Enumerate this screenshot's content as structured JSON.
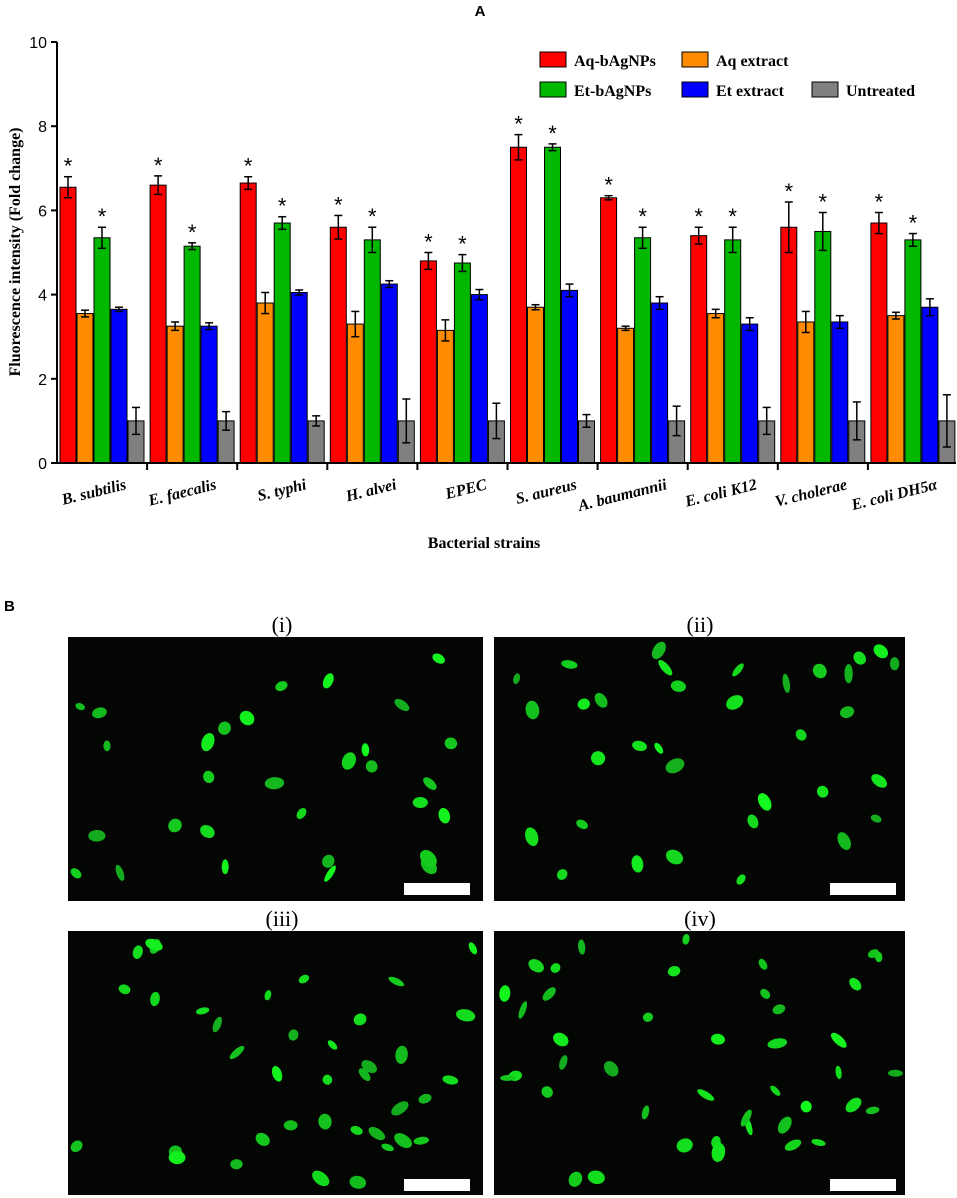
{
  "panel_a_label": "A",
  "panel_b_label": "B",
  "chart_data": {
    "type": "bar",
    "xlabel": "Bacterial strains",
    "ylabel": "Fluorescence intensity (Fold change)",
    "ylim": [
      0,
      10
    ],
    "yticks": [
      "0",
      "2",
      "4",
      "6",
      "8",
      "10"
    ],
    "legend_position": "top-right",
    "categories": [
      "B. subtilis",
      "E. faecalis",
      "S. typhi",
      "H. alvei",
      "EPEC",
      "S. aureus",
      "A. baumannii",
      "E. coli K12",
      "V. cholerae",
      "E. coli DH5α"
    ],
    "series": [
      {
        "name": "Aq-bAgNPs",
        "color": "#ff0000",
        "values": [
          6.55,
          6.6,
          6.65,
          5.6,
          4.8,
          7.5,
          6.3,
          5.4,
          5.6,
          5.7
        ],
        "errors": [
          0.25,
          0.22,
          0.15,
          0.28,
          0.2,
          0.3,
          0.05,
          0.2,
          0.6,
          0.25
        ],
        "significance": [
          "*",
          "*",
          "*",
          "*",
          "*",
          "*",
          "*",
          "*",
          "*",
          "*"
        ]
      },
      {
        "name": "Aq extract",
        "color": "#ff8c00",
        "values": [
          3.55,
          3.25,
          3.8,
          3.3,
          3.15,
          3.7,
          3.2,
          3.55,
          3.35,
          3.5
        ],
        "errors": [
          0.08,
          0.1,
          0.25,
          0.3,
          0.25,
          0.06,
          0.05,
          0.1,
          0.25,
          0.08
        ],
        "significance": [
          "",
          "",
          "",
          "",
          "",
          "",
          "",
          "",
          "",
          ""
        ]
      },
      {
        "name": "Et-bAgNPs",
        "color": "#00b800",
        "values": [
          5.35,
          5.15,
          5.7,
          5.3,
          4.75,
          7.5,
          5.35,
          5.3,
          5.5,
          5.3
        ],
        "errors": [
          0.25,
          0.08,
          0.15,
          0.3,
          0.2,
          0.08,
          0.25,
          0.3,
          0.45,
          0.15
        ],
        "significance": [
          "*",
          "*",
          "*",
          "*",
          "*",
          "*",
          "*",
          "*",
          "*",
          "*"
        ]
      },
      {
        "name": "Et extract",
        "color": "#0000ff",
        "values": [
          3.65,
          3.25,
          4.05,
          4.25,
          4.0,
          4.1,
          3.8,
          3.3,
          3.35,
          3.7
        ],
        "errors": [
          0.05,
          0.08,
          0.06,
          0.08,
          0.12,
          0.15,
          0.15,
          0.15,
          0.15,
          0.2
        ],
        "significance": [
          "",
          "",
          "",
          "",
          "",
          "",
          "",
          "",
          "",
          ""
        ]
      },
      {
        "name": "Untreated",
        "color": "#808080",
        "values": [
          1.0,
          1.0,
          1.0,
          1.0,
          1.0,
          1.0,
          1.0,
          1.0,
          1.0,
          1.0
        ],
        "errors": [
          0.32,
          0.22,
          0.12,
          0.52,
          0.42,
          0.15,
          0.35,
          0.32,
          0.45,
          0.62
        ],
        "significance": [
          "",
          "",
          "",
          "",
          "",
          "",
          "",
          "",
          "",
          ""
        ]
      }
    ]
  },
  "micrographs": [
    {
      "label": "(i)"
    },
    {
      "label": "(ii)"
    },
    {
      "label": "(iii)"
    },
    {
      "label": "(iv)"
    }
  ]
}
